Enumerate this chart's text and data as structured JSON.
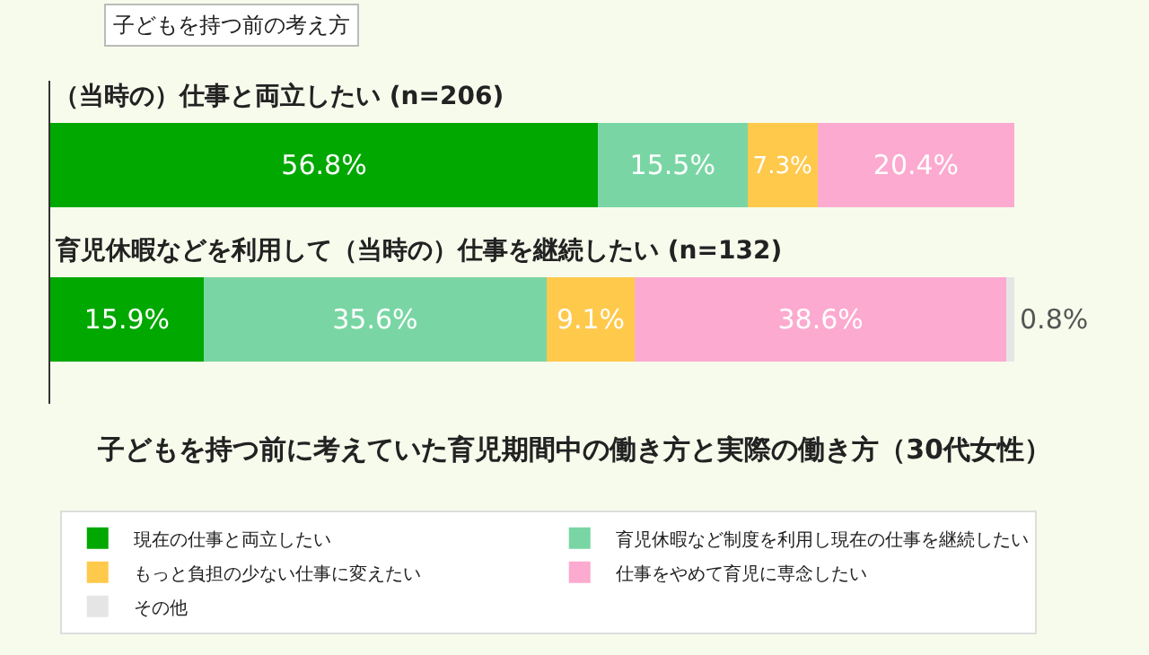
{
  "chart_data": {
    "type": "bar",
    "orientation": "horizontal",
    "stacked": true,
    "subtitle": "子どもを持つ前の考え方",
    "title": "子どもを持つ前に考えていた育児期間中の働き方と実際の働き方（30代女性）",
    "categories": [
      "（当時の）仕事と両立したい (n=206)",
      "育児休暇などを利用して（当時の）仕事を継続したい (n=132)"
    ],
    "series": [
      {
        "name": "現在の仕事と両立したい",
        "color": "#00a800",
        "values": [
          56.8,
          15.9
        ],
        "value_labels": [
          "56.8%",
          "15.9%"
        ]
      },
      {
        "name": "育児休暇など制度を利用し現在の仕事を継続したい",
        "color": "#79d6a4",
        "values": [
          15.5,
          35.6
        ],
        "value_labels": [
          "15.5%",
          "35.6%"
        ]
      },
      {
        "name": "もっと負担の少ない仕事に変えたい",
        "color": "#ffc94c",
        "values": [
          7.3,
          9.1
        ],
        "value_labels": [
          "7.3%",
          "9.1%"
        ]
      },
      {
        "name": "仕事をやめて育児に専念したい",
        "color": "#fcaacf",
        "values": [
          20.4,
          38.6
        ],
        "value_labels": [
          "20.4%",
          "38.6%"
        ]
      },
      {
        "name": "その他",
        "color": "#e5e5e5",
        "values": [
          null,
          0.8
        ],
        "value_labels": [
          null,
          "0.8%"
        ]
      }
    ],
    "xlim": [
      0,
      100
    ],
    "tick_labels": false,
    "grid": false,
    "legend": "bottom"
  }
}
